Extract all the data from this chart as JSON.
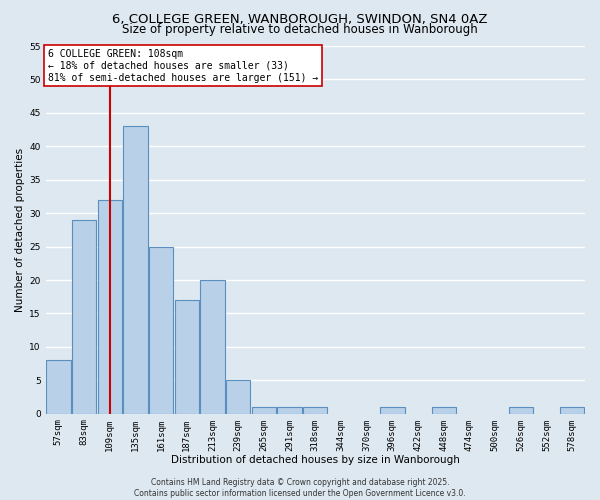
{
  "title_line1": "6, COLLEGE GREEN, WANBOROUGH, SWINDON, SN4 0AZ",
  "title_line2": "Size of property relative to detached houses in Wanborough",
  "xlabel": "Distribution of detached houses by size in Wanborough",
  "ylabel": "Number of detached properties",
  "categories": [
    "57sqm",
    "83sqm",
    "109sqm",
    "135sqm",
    "161sqm",
    "187sqm",
    "213sqm",
    "239sqm",
    "265sqm",
    "291sqm",
    "318sqm",
    "344sqm",
    "370sqm",
    "396sqm",
    "422sqm",
    "448sqm",
    "474sqm",
    "500sqm",
    "526sqm",
    "552sqm",
    "578sqm"
  ],
  "values": [
    8,
    29,
    32,
    43,
    25,
    17,
    20,
    5,
    1,
    1,
    1,
    0,
    0,
    1,
    0,
    1,
    0,
    0,
    1,
    0,
    1
  ],
  "bar_color": "#b8d0e8",
  "bar_edge_color": "#5a8fc0",
  "bar_edge_width": 0.8,
  "background_color": "#dde8f0",
  "plot_bg_color": "#dde8f0",
  "grid_color": "#ffffff",
  "property_line_x": 2,
  "property_line_color": "#cc0000",
  "annotation_text": "6 COLLEGE GREEN: 108sqm\n← 18% of detached houses are smaller (33)\n81% of semi-detached houses are larger (151) →",
  "annotation_box_color": "#ffffff",
  "annotation_box_edge_color": "#cc0000",
  "annotation_fontsize": 7.0,
  "ylim": [
    0,
    55
  ],
  "yticks": [
    0,
    5,
    10,
    15,
    20,
    25,
    30,
    35,
    40,
    45,
    50,
    55
  ],
  "footer_line1": "Contains HM Land Registry data © Crown copyright and database right 2025.",
  "footer_line2": "Contains public sector information licensed under the Open Government Licence v3.0.",
  "title_fontsize": 9.5,
  "subtitle_fontsize": 8.5,
  "axis_label_fontsize": 7.5,
  "tick_fontsize": 6.5
}
